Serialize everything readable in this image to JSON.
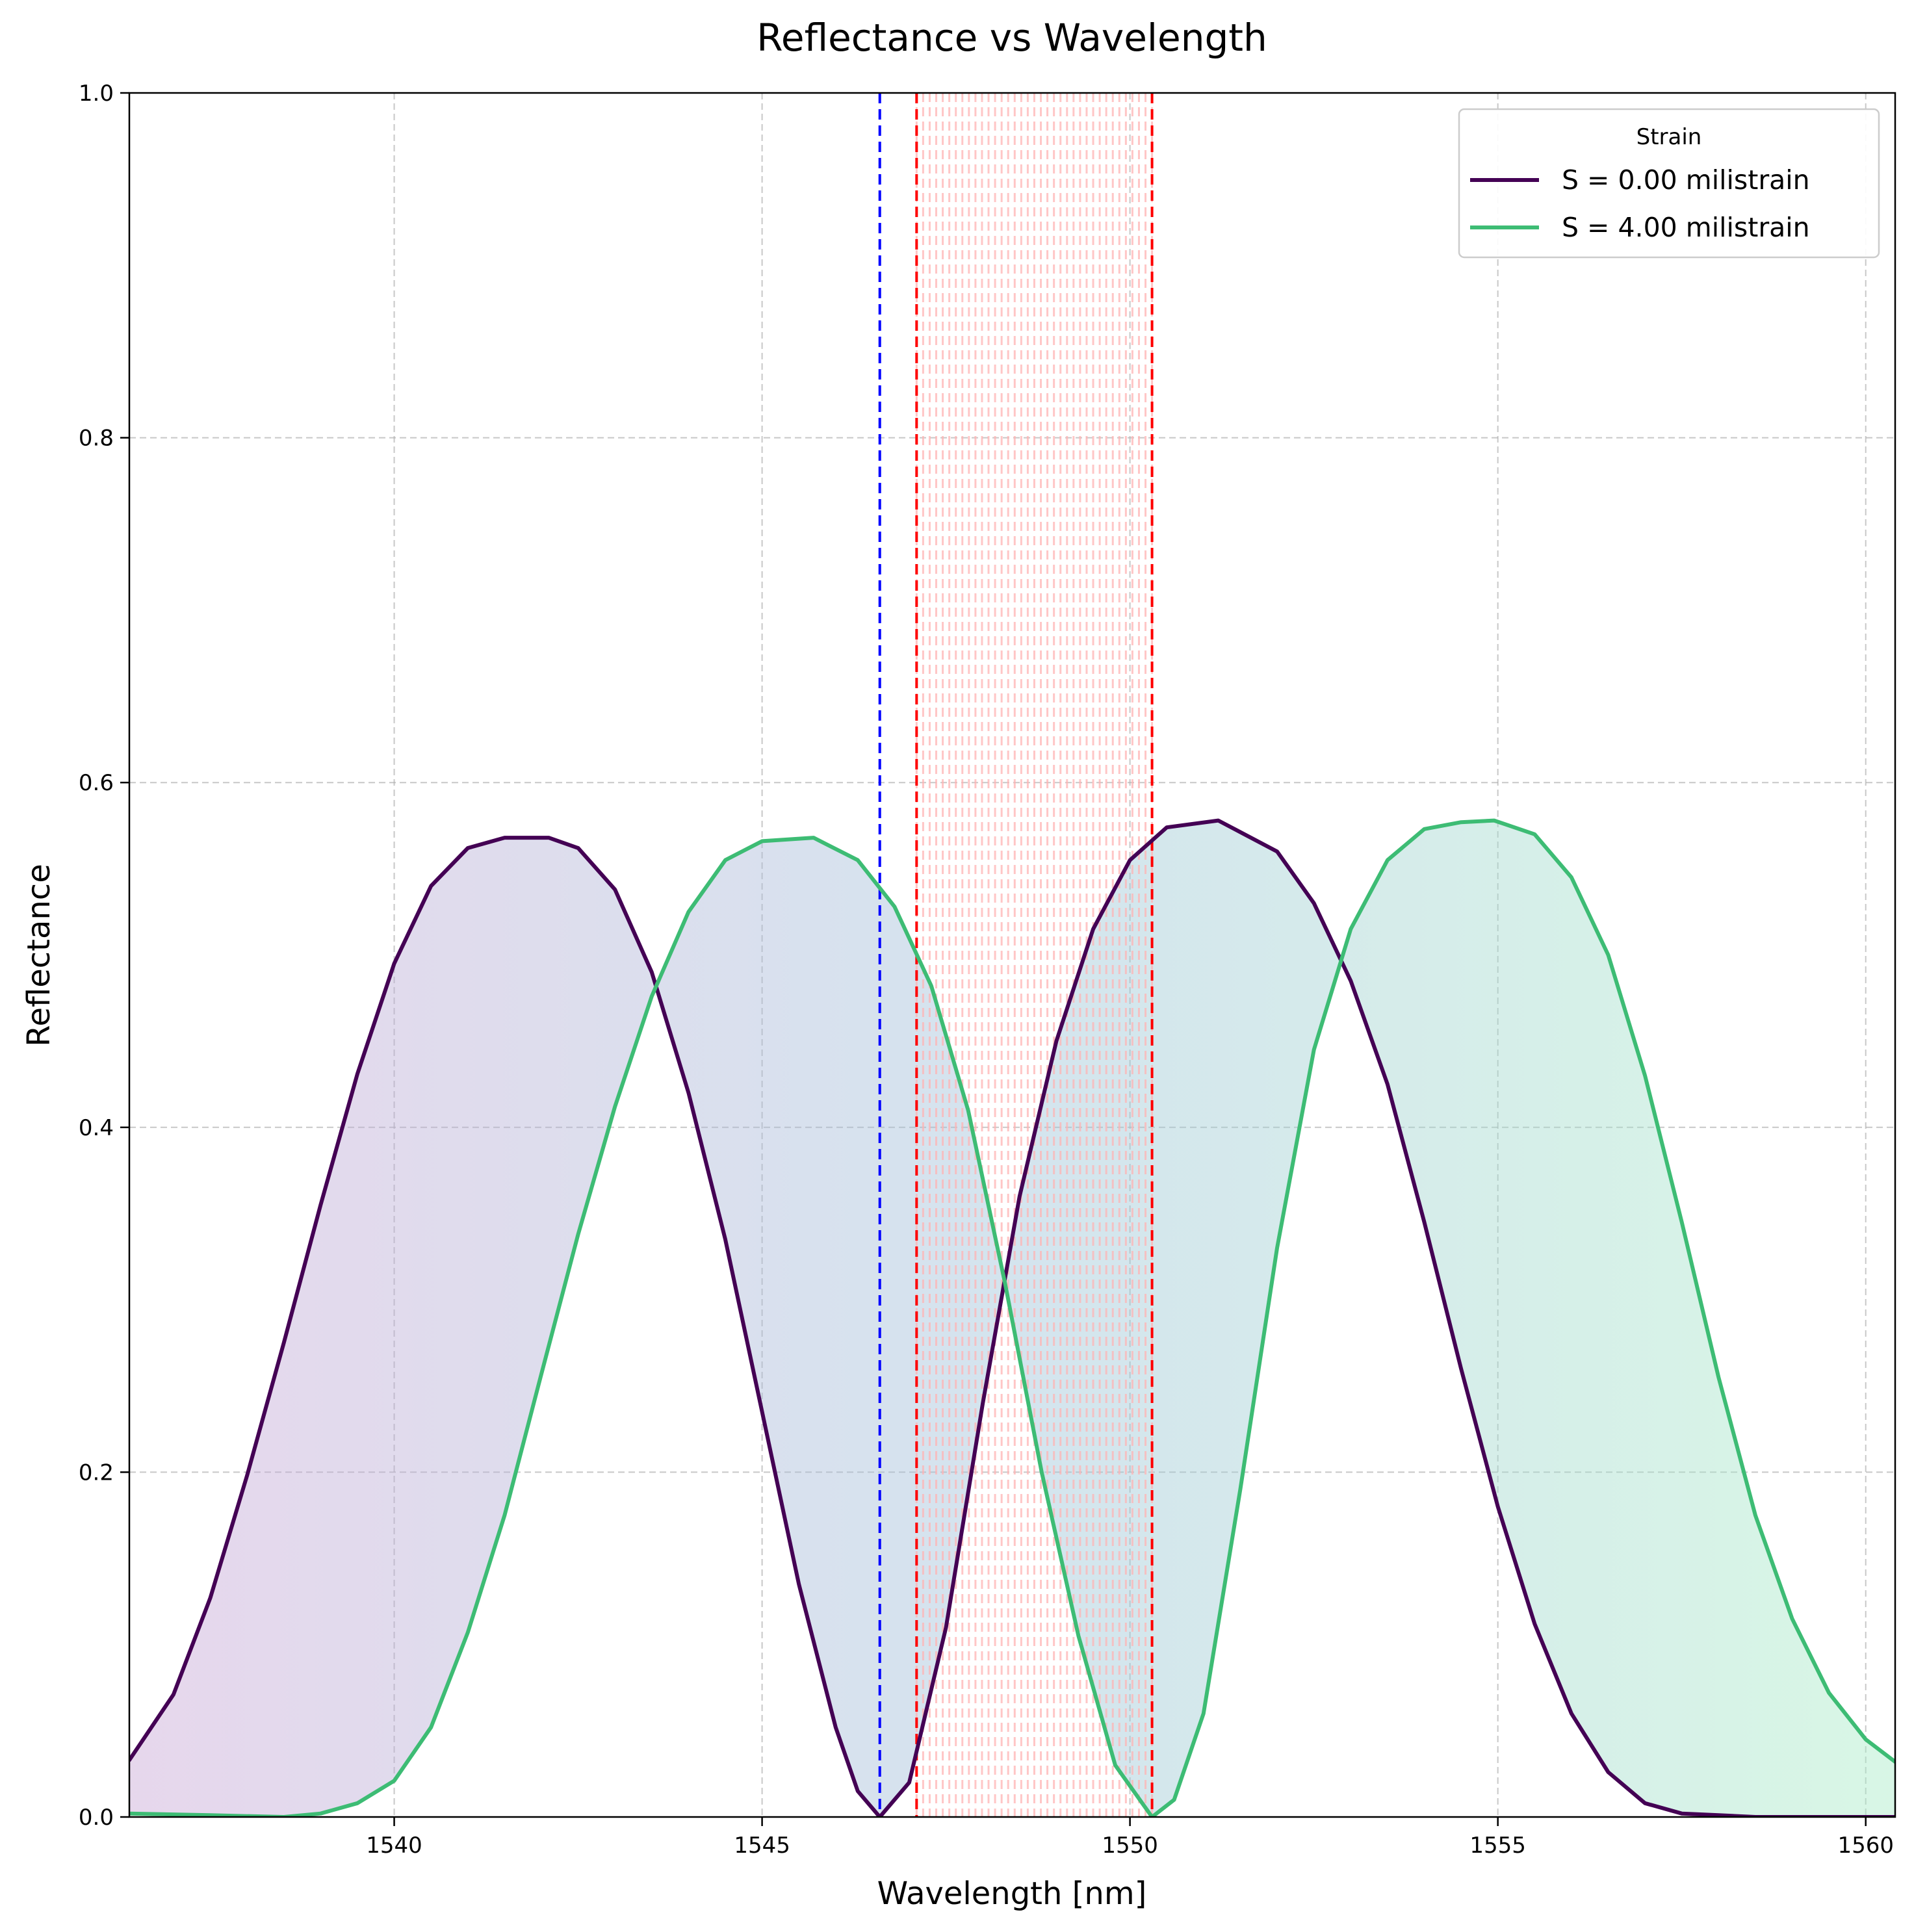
{
  "chart_data": {
    "type": "line",
    "title": "Reflectance vs Wavelength",
    "xlabel": "Wavelength [nm]",
    "ylabel": "Reflectance",
    "xlim": [
      1536.4,
      1560.4
    ],
    "ylim": [
      0.0,
      1.0
    ],
    "xticks": [
      1540,
      1545,
      1550,
      1555,
      1560
    ],
    "xtick_labels": [
      "1540",
      "1545",
      "1550",
      "1555",
      "1560"
    ],
    "yticks": [
      0.0,
      0.2,
      0.4,
      0.6,
      0.8,
      1.0
    ],
    "ytick_labels": [
      "0.0",
      "0.2",
      "0.4",
      "0.6",
      "0.8",
      "1.0"
    ],
    "grid": true,
    "legend": {
      "title": "Strain",
      "position": "top-right",
      "entries": [
        "S = 0.00 milistrain",
        "S = 4.00 milistrain"
      ]
    },
    "series": [
      {
        "name": "S = 0.00 milistrain",
        "color": "#440154",
        "x": [
          1536.4,
          1537.0,
          1537.5,
          1538.0,
          1538.5,
          1539.0,
          1539.5,
          1540.0,
          1540.5,
          1541.0,
          1541.5,
          1542.1,
          1542.5,
          1543.0,
          1543.5,
          1544.0,
          1544.5,
          1545.0,
          1545.5,
          1546.0,
          1546.3,
          1546.6,
          1547.0,
          1547.5,
          1548.0,
          1548.5,
          1549.0,
          1549.5,
          1550.0,
          1550.5,
          1551.2,
          1552.0,
          1552.5,
          1553.0,
          1553.5,
          1554.0,
          1554.5,
          1555.0,
          1555.5,
          1556.0,
          1556.5,
          1557.0,
          1557.5,
          1558.0,
          1558.5,
          1559.0,
          1559.5,
          1560.4
        ],
        "values": [
          0.033,
          0.071,
          0.127,
          0.198,
          0.275,
          0.355,
          0.431,
          0.495,
          0.54,
          0.562,
          0.568,
          0.568,
          0.562,
          0.538,
          0.49,
          0.42,
          0.335,
          0.235,
          0.135,
          0.052,
          0.015,
          0.0,
          0.02,
          0.11,
          0.24,
          0.36,
          0.45,
          0.515,
          0.555,
          0.574,
          0.578,
          0.56,
          0.53,
          0.485,
          0.425,
          0.345,
          0.26,
          0.18,
          0.112,
          0.06,
          0.026,
          0.008,
          0.002,
          0.001,
          0.0,
          0.0,
          0.0,
          0.0
        ]
      },
      {
        "name": "S = 4.00 milistrain",
        "color": "#3dbc74",
        "x": [
          1536.4,
          1537.5,
          1538.5,
          1539.0,
          1539.5,
          1540.0,
          1540.5,
          1541.0,
          1541.5,
          1542.0,
          1542.5,
          1543.0,
          1543.5,
          1544.0,
          1544.5,
          1545.0,
          1545.7,
          1546.3,
          1546.8,
          1547.3,
          1547.8,
          1548.3,
          1548.8,
          1549.3,
          1549.8,
          1550.3,
          1550.6,
          1551.0,
          1551.5,
          1552.0,
          1552.5,
          1553.0,
          1553.5,
          1554.0,
          1554.5,
          1554.95,
          1555.5,
          1556.0,
          1556.5,
          1557.0,
          1557.5,
          1558.0,
          1558.5,
          1559.0,
          1559.5,
          1560.0,
          1560.4
        ],
        "values": [
          0.002,
          0.001,
          0.0,
          0.002,
          0.008,
          0.021,
          0.052,
          0.107,
          0.175,
          0.257,
          0.338,
          0.412,
          0.476,
          0.525,
          0.555,
          0.566,
          0.568,
          0.555,
          0.528,
          0.482,
          0.41,
          0.31,
          0.2,
          0.105,
          0.03,
          0.0,
          0.01,
          0.06,
          0.19,
          0.33,
          0.445,
          0.515,
          0.555,
          0.573,
          0.577,
          0.578,
          0.57,
          0.545,
          0.5,
          0.43,
          0.345,
          0.255,
          0.175,
          0.115,
          0.072,
          0.045,
          0.032
        ]
      }
    ],
    "vertical_lines": [
      {
        "x": 1546.6,
        "color": "#0000ff",
        "style": "dashed"
      },
      {
        "x": 1547.1,
        "color": "#ff0000",
        "style": "dashed"
      },
      {
        "x": 1550.3,
        "color": "#ff0000",
        "style": "dashed"
      }
    ],
    "shaded_band": {
      "x_range": [
        1547.1,
        1550.3
      ],
      "color": "#ffb3b3"
    }
  }
}
